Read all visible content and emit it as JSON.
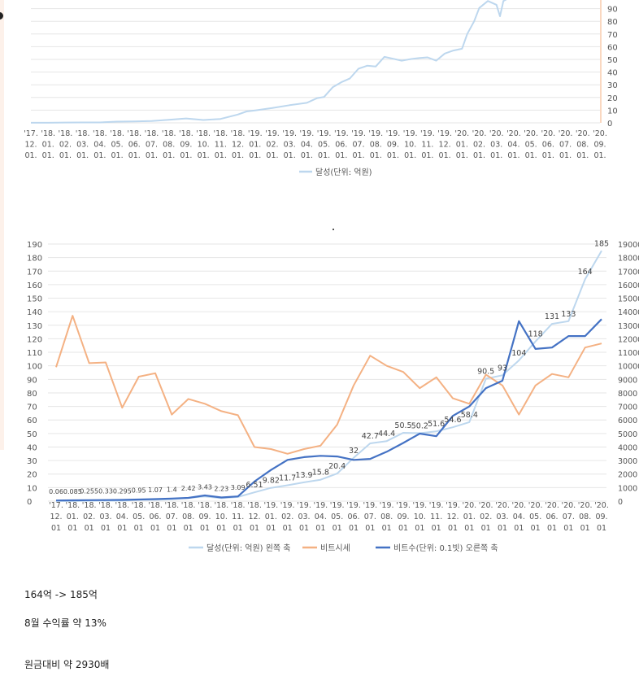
{
  "chart_data": [
    {
      "type": "line",
      "legend": "달성(단위: 억원)",
      "legend_position": "bottom",
      "grid": true,
      "ylim": [
        0,
        100
      ],
      "y_ticks_visible": [
        "0",
        "10",
        "20",
        "30",
        "40",
        "50",
        "60",
        "70",
        "80",
        "90"
      ],
      "x_ticks": [
        [
          "'17.",
          "12.",
          "01."
        ],
        [
          "'18.",
          "01.",
          "01."
        ],
        [
          "'18.",
          "02.",
          "01."
        ],
        [
          "'18.",
          "03.",
          "01."
        ],
        [
          "'18.",
          "04.",
          "01."
        ],
        [
          "'18.",
          "05.",
          "01."
        ],
        [
          "'18.",
          "06.",
          "01."
        ],
        [
          "'18.",
          "07.",
          "01."
        ],
        [
          "'18.",
          "08.",
          "01."
        ],
        [
          "'18.",
          "09.",
          "01."
        ],
        [
          "'18.",
          "10.",
          "01."
        ],
        [
          "'18.",
          "11.",
          "01."
        ],
        [
          "'18.",
          "12.",
          "01."
        ],
        [
          "'19.",
          "01.",
          "01."
        ],
        [
          "'19.",
          "02.",
          "01."
        ],
        [
          "'19.",
          "03.",
          "01."
        ],
        [
          "'19.",
          "04.",
          "01."
        ],
        [
          "'19.",
          "05.",
          "01."
        ],
        [
          "'19.",
          "06.",
          "01."
        ],
        [
          "'19.",
          "07.",
          "01."
        ],
        [
          "'19.",
          "08.",
          "01."
        ],
        [
          "'19.",
          "09.",
          "01."
        ],
        [
          "'19.",
          "10.",
          "01."
        ],
        [
          "'19.",
          "11.",
          "01."
        ],
        [
          "'19.",
          "12.",
          "01."
        ],
        [
          "'20.",
          "01.",
          "01."
        ],
        [
          "'20.",
          "02.",
          "01."
        ],
        [
          "'20.",
          "03.",
          "01."
        ],
        [
          "'20.",
          "04.",
          "01."
        ],
        [
          "'20.",
          "05.",
          "01."
        ],
        [
          "'20.",
          "06.",
          "01."
        ],
        [
          "'20.",
          "07.",
          "01."
        ],
        [
          "'20.",
          "08.",
          "01."
        ],
        [
          "'20.",
          "09.",
          "01."
        ]
      ],
      "series": [
        {
          "name": "달성(단위: 억원)",
          "points": [
            [
              0,
              0.06
            ],
            [
              1,
              0.085
            ],
            [
              2,
              0.255
            ],
            [
              3,
              0.33
            ],
            [
              4,
              0.295
            ],
            [
              5,
              0.95
            ],
            [
              6,
              1.07
            ],
            [
              7,
              1.4
            ],
            [
              8,
              2.42
            ],
            [
              9,
              3.43
            ],
            [
              10,
              2.23
            ],
            [
              11,
              3.09
            ],
            [
              12,
              6.51
            ],
            [
              12.5,
              9.0
            ],
            [
              13,
              9.82
            ],
            [
              14,
              11.7
            ],
            [
              15,
              13.9
            ],
            [
              16,
              15.8
            ],
            [
              16.6,
              19.5
            ],
            [
              17,
              20.4
            ],
            [
              17.5,
              28
            ],
            [
              18,
              32
            ],
            [
              18.5,
              35
            ],
            [
              19,
              42.7
            ],
            [
              19.5,
              45
            ],
            [
              20,
              44.4
            ],
            [
              20.5,
              52
            ],
            [
              21,
              50.5
            ],
            [
              21.5,
              49
            ],
            [
              22,
              50.2
            ],
            [
              22.5,
              51
            ],
            [
              23,
              51.6
            ],
            [
              23.5,
              49
            ],
            [
              24,
              54.6
            ],
            [
              24.5,
              57
            ],
            [
              25,
              58.4
            ],
            [
              25.3,
              70
            ],
            [
              25.7,
              80
            ],
            [
              26,
              90.5
            ],
            [
              26.5,
              96
            ],
            [
              27,
              93
            ],
            [
              27.2,
              84
            ],
            [
              27.4,
              96
            ],
            [
              27.8,
              99
            ],
            [
              28,
              104
            ]
          ]
        }
      ]
    },
    {
      "type": "line",
      "left_axis": {
        "ticks": [
          "0",
          "10",
          "20",
          "30",
          "40",
          "50",
          "60",
          "70",
          "80",
          "90",
          "100",
          "110",
          "120",
          "130",
          "140",
          "150",
          "160",
          "170",
          "180",
          "190"
        ],
        "ylim": [
          0,
          190
        ]
      },
      "right_axis": {
        "ticks": [
          "0",
          "1000",
          "2000",
          "3000",
          "4000",
          "5000",
          "6000",
          "7000",
          "8000",
          "9000",
          "10000",
          "11000",
          "12000",
          "13000",
          "14000",
          "15000",
          "16000",
          "17000",
          "18000",
          "19000"
        ],
        "ylim": [
          0,
          19000
        ]
      },
      "legend_position": "bottom",
      "grid": true,
      "x_ticks": [
        [
          "'17.",
          "12.",
          "01"
        ],
        [
          "'18.",
          "01.",
          "01"
        ],
        [
          "'18.",
          "02.",
          "01"
        ],
        [
          "'18.",
          "03.",
          "01"
        ],
        [
          "'18.",
          "04.",
          "01"
        ],
        [
          "'18.",
          "05.",
          "01"
        ],
        [
          "'18.",
          "06.",
          "01"
        ],
        [
          "'18.",
          "07.",
          "01"
        ],
        [
          "'18.",
          "08.",
          "01"
        ],
        [
          "'18.",
          "09.",
          "01"
        ],
        [
          "'18.",
          "10.",
          "01"
        ],
        [
          "'18.",
          "11.",
          "01"
        ],
        [
          "'18.",
          "12.",
          "01"
        ],
        [
          "'19.",
          "01.",
          "01"
        ],
        [
          "'19.",
          "02.",
          "01"
        ],
        [
          "'19.",
          "03.",
          "01"
        ],
        [
          "'19.",
          "04.",
          "01"
        ],
        [
          "'19.",
          "05.",
          "01"
        ],
        [
          "'19.",
          "06.",
          "01"
        ],
        [
          "'19.",
          "07.",
          "01"
        ],
        [
          "'19.",
          "08.",
          "01"
        ],
        [
          "'19.",
          "09.",
          "01"
        ],
        [
          "'19.",
          "10.",
          "01"
        ],
        [
          "'19.",
          "11.",
          "01"
        ],
        [
          "'19.",
          "12.",
          "01"
        ],
        [
          "'20.",
          "01.",
          "01"
        ],
        [
          "'20.",
          "02.",
          "01"
        ],
        [
          "'20.",
          "03.",
          "01"
        ],
        [
          "'20.",
          "04.",
          "01"
        ],
        [
          "'20.",
          "05.",
          "01"
        ],
        [
          "'20.",
          "06.",
          "01"
        ],
        [
          "'20.",
          "07.",
          "01"
        ],
        [
          "'20.",
          "08.",
          "01"
        ],
        [
          "'20.",
          "09.",
          "01"
        ]
      ],
      "series": [
        {
          "name": "달성(단위: 억원) 왼쪽 축",
          "color": "#bdd7ee",
          "axis": "left",
          "values": [
            0.06,
            0.085,
            0.255,
            0.33,
            0.295,
            0.95,
            1.07,
            1.4,
            2.42,
            3.43,
            2.23,
            3.09,
            6.51,
            9.82,
            11.7,
            13.9,
            15.8,
            20.4,
            32,
            42.7,
            44.4,
            50.5,
            50.2,
            51.6,
            54.6,
            58.4,
            90.5,
            93,
            104,
            118,
            131,
            133,
            164,
            185
          ],
          "labels": [
            "0.06",
            "0.085",
            "0.255",
            "0.33",
            "0.295",
            "0.95",
            "1.07",
            "1.4",
            "2.42",
            "3.43",
            "2.23",
            "3.09",
            "6.51",
            "9.82",
            "11.7",
            "13.9",
            "15.8",
            "20.4",
            "32",
            "42.7",
            "44.4",
            "50.5",
            "50.2",
            "51.6",
            "54.6",
            "58.4",
            "90.5",
            "93",
            "104",
            "118",
            "131",
            "133",
            "164",
            "185"
          ]
        },
        {
          "name": "비트시세",
          "color": "#f4b183",
          "axis": "right",
          "values": [
            9900,
            13700,
            10200,
            10250,
            6900,
            9200,
            9450,
            6400,
            7550,
            7200,
            6650,
            6350,
            4000,
            3850,
            3500,
            3850,
            4100,
            5650,
            8550,
            10750,
            10000,
            9550,
            8350,
            9150,
            7600,
            7200,
            9350,
            8550,
            6400,
            8550,
            9400,
            9150,
            11350,
            11650
          ]
        },
        {
          "name": "비트수(단위: 0.1빗) 오른쪽 축",
          "color": "#4472c4",
          "axis": "right",
          "values": [
            50,
            60,
            70,
            80,
            90,
            120,
            150,
            190,
            240,
            420,
            270,
            350,
            1450,
            2300,
            3050,
            3250,
            3350,
            3300,
            3050,
            3120,
            3650,
            4300,
            4990,
            4800,
            6300,
            7000,
            8350,
            8900,
            13300,
            11250,
            11350,
            12200,
            12200,
            13450
          ]
        }
      ]
    }
  ],
  "notes": {
    "line1": "164억 -> 185억",
    "line2": "8월 수익률 약 13%",
    "line3": "원금대비 약 2930배"
  },
  "colors": {
    "light_blue": "#bdd7ee",
    "orange": "#f4b183",
    "dark_blue": "#4472c4",
    "right_axis": "#f4b183",
    "grid": "#e6e6e6"
  }
}
